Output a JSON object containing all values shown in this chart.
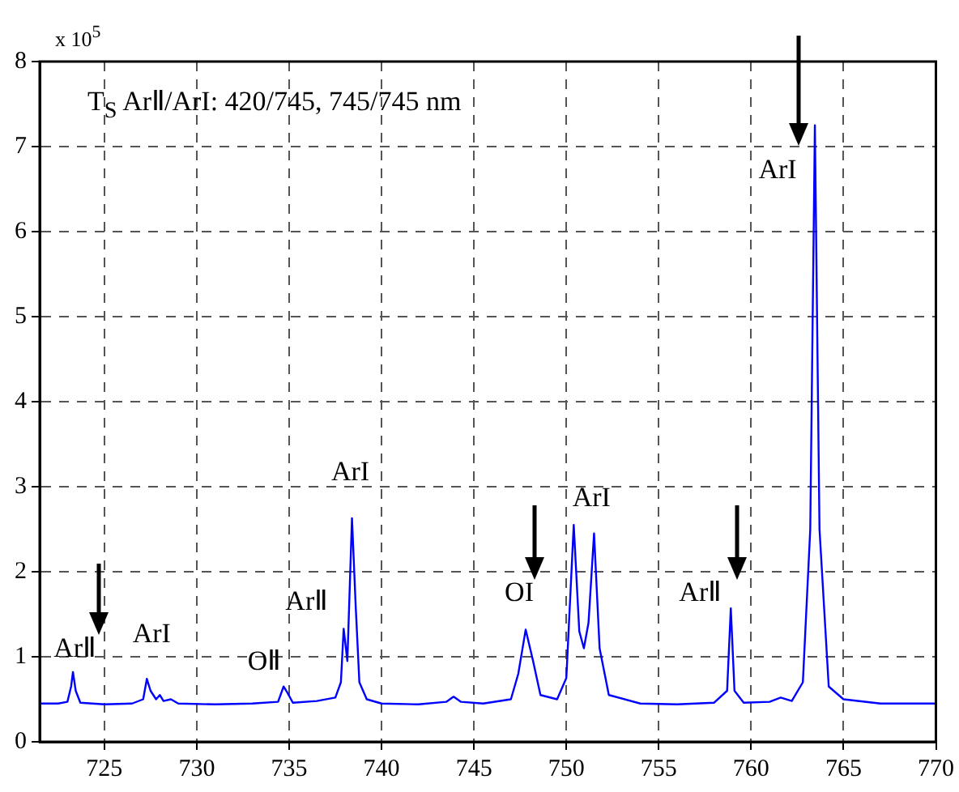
{
  "chart_data": {
    "type": "line",
    "xlim": [
      721.5,
      770
    ],
    "xticks": [
      725,
      730,
      735,
      740,
      745,
      750,
      755,
      760,
      765,
      770
    ],
    "ylim": [
      0,
      8
    ],
    "yticks": [
      0,
      1,
      2,
      3,
      4,
      5,
      6,
      7,
      8
    ],
    "grid": true,
    "legend": false,
    "marker": "none",
    "line_style": "solid",
    "series": [
      {
        "color": "#0000ff",
        "x": [
          721.5,
          722.5,
          723.0,
          723.2,
          723.3,
          723.45,
          723.7,
          725,
          726.5,
          727.1,
          727.3,
          727.5,
          727.8,
          728.0,
          728.2,
          728.6,
          729,
          731,
          733,
          734.4,
          734.7,
          734.9,
          735.2,
          736.5,
          737.5,
          737.8,
          737.95,
          738.15,
          738.4,
          738.6,
          738.8,
          739.2,
          740,
          742,
          743.5,
          743.9,
          744.3,
          745.5,
          747,
          747.4,
          747.8,
          748.2,
          748.6,
          749.5,
          750.0,
          750.4,
          750.7,
          750.95,
          751.2,
          751.5,
          751.8,
          752.3,
          754,
          756,
          758,
          758.7,
          758.9,
          759.1,
          759.6,
          761,
          761.6,
          762.2,
          762.8,
          763.2,
          763.45,
          763.7,
          764.2,
          765,
          767,
          770
        ],
        "values": [
          0.45,
          0.45,
          0.47,
          0.65,
          0.82,
          0.6,
          0.46,
          0.44,
          0.45,
          0.5,
          0.74,
          0.6,
          0.5,
          0.55,
          0.48,
          0.5,
          0.45,
          0.44,
          0.45,
          0.47,
          0.65,
          0.58,
          0.46,
          0.48,
          0.52,
          0.7,
          1.33,
          0.95,
          2.63,
          1.6,
          0.7,
          0.5,
          0.45,
          0.44,
          0.47,
          0.53,
          0.47,
          0.45,
          0.5,
          0.8,
          1.32,
          0.95,
          0.55,
          0.5,
          0.75,
          2.55,
          1.3,
          1.1,
          1.4,
          2.45,
          1.1,
          0.55,
          0.45,
          0.44,
          0.46,
          0.6,
          1.57,
          0.6,
          0.46,
          0.47,
          0.52,
          0.48,
          0.7,
          2.5,
          7.25,
          2.5,
          0.65,
          0.5,
          0.45,
          0.45
        ]
      }
    ],
    "annotations": [
      "x 10$^{5}$",
      "T$_{S}$ ArⅡ/ArI: 420/745, 745/745 nm",
      {
        "text": "ArⅡ",
        "x": 723.3,
        "y": 0.82
      },
      {
        "text": "ArI",
        "x": 727.3,
        "y": 0.74
      },
      {
        "text": "OⅡ",
        "x": 734.7,
        "y": 0.65
      },
      {
        "text": "ArⅡ",
        "x": 737.95,
        "y": 1.33
      },
      {
        "text": "ArI",
        "x": 738.4,
        "y": 2.63
      },
      {
        "text": "OI",
        "x": 747.8,
        "y": 1.32
      },
      {
        "text": "ArI",
        "x": 750.4,
        "y": 2.55
      },
      {
        "text": "ArⅡ",
        "x": 758.9,
        "y": 1.57
      },
      {
        "text": "ArI",
        "x": 763.45,
        "y": 7.25
      }
    ]
  }
}
